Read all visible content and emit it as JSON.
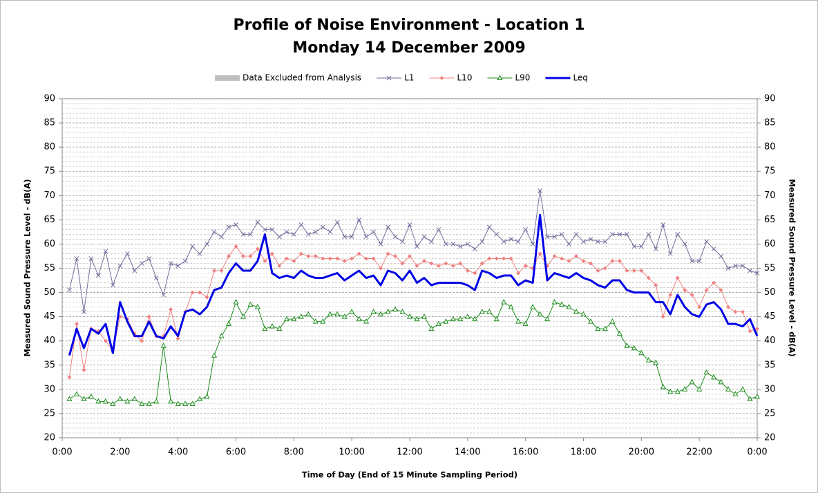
{
  "chart_data": {
    "type": "line",
    "title": "Profile of Noise Environment - Location 1",
    "subtitle": "Monday 14 December 2009",
    "xlabel": "Time of Day (End of 15 Minute Sampling Period)",
    "ylabel": "Measured Sound Pressure Level - dB(A)",
    "y2label": "Measured Sound Pressure Level - dB(A)",
    "excluded": {
      "name": "Data Excluded from Analysis",
      "color": "#bfbfbf"
    },
    "x": [
      0.25,
      0.5,
      0.75,
      1,
      1.25,
      1.5,
      1.75,
      2,
      2.25,
      2.5,
      2.75,
      3,
      3.25,
      3.5,
      3.75,
      4,
      4.25,
      4.5,
      4.75,
      5,
      5.25,
      5.5,
      5.75,
      6,
      6.25,
      6.5,
      6.75,
      7,
      7.25,
      7.5,
      7.75,
      8,
      8.25,
      8.5,
      8.75,
      9,
      9.25,
      9.5,
      9.75,
      10,
      10.25,
      10.5,
      10.75,
      11,
      11.25,
      11.5,
      11.75,
      12,
      12.25,
      12.5,
      12.75,
      13,
      13.25,
      13.5,
      13.75,
      14,
      14.25,
      14.5,
      14.75,
      15,
      15.25,
      15.5,
      15.75,
      16,
      16.25,
      16.5,
      16.75,
      17,
      17.25,
      17.5,
      17.75,
      18,
      18.25,
      18.5,
      18.75,
      19,
      19.25,
      19.5,
      19.75,
      20,
      20.25,
      20.5,
      20.75,
      21,
      21.25,
      21.5,
      21.75,
      22,
      22.25,
      22.5,
      22.75,
      23,
      23.25,
      23.5,
      23.75,
      24
    ],
    "series": [
      {
        "name": "L1",
        "color": "#6e6e9c",
        "marker": "x",
        "width": 1,
        "values": [
          50.5,
          57,
          46,
          57,
          53.5,
          58.5,
          51.5,
          55.5,
          58,
          54.5,
          56,
          57,
          53,
          49.5,
          56,
          55.5,
          56.5,
          59.5,
          58,
          60,
          62.5,
          61.5,
          63.5,
          64,
          62,
          62,
          64.5,
          63,
          63,
          61.5,
          62.5,
          62,
          64,
          62,
          62.5,
          63.5,
          62.5,
          64.5,
          61.5,
          61.5,
          65,
          61.5,
          62.5,
          60,
          63.5,
          61.5,
          60.5,
          64,
          59.5,
          61.5,
          60.5,
          63,
          60,
          60,
          59.5,
          60,
          59,
          60.5,
          63.5,
          62,
          60.5,
          61,
          60.5,
          63,
          60,
          71,
          61.5,
          61.5,
          62,
          60,
          62,
          60.5,
          61,
          60.5,
          60.5,
          62,
          62,
          62,
          59.5,
          59.5,
          62,
          59,
          64,
          58,
          62,
          60,
          56.5,
          56.5,
          60.5,
          59,
          57.5,
          55,
          55.5,
          55.5,
          54.5,
          54
        ]
      },
      {
        "name": "L10",
        "color": "#f08080",
        "marker": "diamond",
        "width": 1,
        "values": [
          32.5,
          43.5,
          34,
          42.5,
          42,
          40,
          38,
          45,
          44.5,
          41.5,
          40,
          45,
          41,
          41,
          46.5,
          40.5,
          46,
          50,
          50,
          49,
          54.5,
          54.5,
          57.5,
          59.5,
          57.5,
          57.5,
          59,
          56.5,
          58,
          55.5,
          57,
          56.5,
          58,
          57.5,
          57.5,
          57,
          57,
          57,
          56.5,
          57,
          58,
          57,
          57,
          55,
          58,
          57.5,
          56,
          57.5,
          55.5,
          56.5,
          56,
          55.5,
          56,
          55.5,
          56,
          54.5,
          54,
          56,
          57,
          57,
          57,
          57,
          54,
          55.5,
          55,
          58,
          55.5,
          57.5,
          57,
          56.5,
          57.5,
          56.5,
          56,
          54.5,
          55,
          56.5,
          56.5,
          54.5,
          54.5,
          54.5,
          53,
          51.5,
          45,
          49.5,
          53,
          50.5,
          49.5,
          47,
          50.5,
          52,
          50.5,
          47,
          46,
          46,
          42,
          42.5
        ]
      },
      {
        "name": "L90",
        "color": "#1a8c1a",
        "marker": "triangle",
        "width": 1,
        "values": [
          28,
          29,
          28,
          28.5,
          27.5,
          27.5,
          27,
          28,
          27.5,
          28,
          27,
          27,
          27.5,
          39,
          27.5,
          27,
          27,
          27,
          28,
          28.5,
          37,
          41,
          43.5,
          48,
          45,
          47.5,
          47,
          42.5,
          43,
          42.5,
          44.5,
          44.5,
          45,
          45.5,
          44,
          44,
          45.5,
          45.5,
          45,
          46,
          44.5,
          44,
          46,
          45.5,
          46,
          46.5,
          46,
          45,
          44.5,
          45,
          42.5,
          43.5,
          44,
          44.5,
          44.5,
          45,
          44.5,
          46,
          46,
          44.5,
          48,
          47,
          44,
          43.5,
          47,
          45.5,
          44.5,
          48,
          47.5,
          47,
          46,
          45.5,
          44,
          42.5,
          42.5,
          44,
          41.5,
          39,
          38.5,
          37.5,
          36,
          35.5,
          30.5,
          29.5,
          29.5,
          30,
          31.5,
          30,
          33.5,
          32.5,
          31.5,
          30,
          29,
          30,
          28,
          28.5
        ]
      },
      {
        "name": "Leq",
        "color": "#0000e6",
        "marker": "none",
        "width": 3,
        "values": [
          37,
          42.5,
          38.5,
          42.5,
          41.5,
          43.5,
          37.5,
          48,
          44,
          41,
          41,
          44,
          41,
          40.5,
          43,
          41,
          46,
          46.5,
          45.5,
          47,
          50.5,
          51,
          54,
          56,
          54.5,
          54.5,
          56.5,
          62,
          54,
          53,
          53.5,
          53,
          54.5,
          53.5,
          53,
          53,
          53.5,
          54,
          52.5,
          53.5,
          54.5,
          53,
          53.5,
          51.5,
          54.5,
          54,
          52.5,
          54.5,
          52,
          53,
          51.5,
          52,
          52,
          52,
          52,
          51.5,
          50.5,
          54.5,
          54,
          53,
          53.5,
          53.5,
          51.5,
          52.5,
          52,
          66,
          52.5,
          54,
          53.5,
          53,
          54,
          53,
          52.5,
          51.5,
          51,
          52.5,
          52.5,
          50.5,
          50,
          50,
          50,
          48,
          48,
          45.5,
          49.5,
          47,
          45.5,
          45,
          47.5,
          48,
          46.5,
          43.5,
          43.5,
          43,
          44.5,
          41
        ]
      }
    ],
    "xlim": [
      0,
      24
    ],
    "xticks": [
      {
        "value": 0,
        "label": "0:00"
      },
      {
        "value": 2,
        "label": "2:00"
      },
      {
        "value": 4,
        "label": "4:00"
      },
      {
        "value": 6,
        "label": "6:00"
      },
      {
        "value": 8,
        "label": "8:00"
      },
      {
        "value": 10,
        "label": "10:00"
      },
      {
        "value": 12,
        "label": "12:00"
      },
      {
        "value": 14,
        "label": "14:00"
      },
      {
        "value": 16,
        "label": "16:00"
      },
      {
        "value": 18,
        "label": "18:00"
      },
      {
        "value": 20,
        "label": "20:00"
      },
      {
        "value": 22,
        "label": "22:00"
      },
      {
        "value": 24,
        "label": "0:00"
      }
    ],
    "ylim": [
      20,
      90
    ],
    "yticks": [
      20,
      25,
      30,
      35,
      40,
      45,
      50,
      55,
      60,
      65,
      70,
      75,
      80,
      85,
      90
    ],
    "y2lim": [
      20,
      90
    ],
    "y2ticks": [
      20,
      25,
      30,
      35,
      40,
      45,
      50,
      55,
      60,
      65,
      70,
      75,
      80,
      85,
      90
    ],
    "grid": true,
    "minor_grid_step": 1,
    "legend": "top"
  }
}
